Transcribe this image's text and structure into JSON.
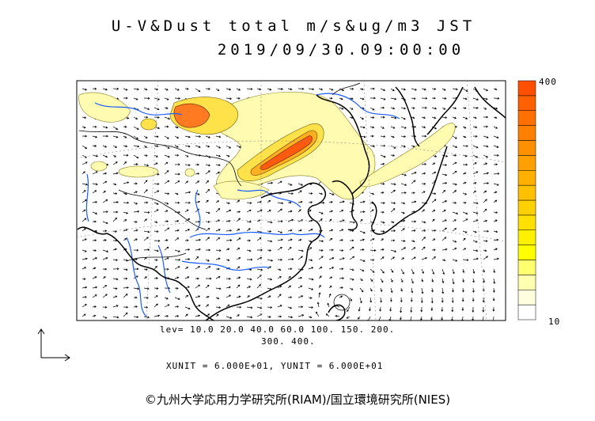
{
  "title_line1": "U-V&Dust total m/s&ug/m3 JST",
  "title_line2": "2019/09/30.09:00:00",
  "contour_levels_line1": "lev= 10.0 20.0 40.0 60.0 100. 150. 200.",
  "contour_levels_line2": "300. 400.",
  "units_line": "XUNIT = 6.000E+01, YUNIT = 6.000E+01",
  "colorbar": {
    "max_label": "400",
    "min_label": "10",
    "colors": [
      "#ffffff",
      "#ffffe0",
      "#ffffb0",
      "#ffff70",
      "#ffff00",
      "#fff000",
      "#ffe000",
      "#ffd000",
      "#ffc000",
      "#ffb000",
      "#ffa000",
      "#ff9000",
      "#ff8000",
      "#ff7000",
      "#ff6000",
      "#ff5000"
    ]
  },
  "credit": "©九州大学応用力学研究所(RIAM)/国立環境研究所(NIES)",
  "colors": {
    "dust_low": "#fffbb0",
    "dust_mid": "#ffe24a",
    "dust_high": "#ffb020",
    "dust_peak": "#ff5a10",
    "rivers": "#1a5cff",
    "coast": "#000000"
  }
}
